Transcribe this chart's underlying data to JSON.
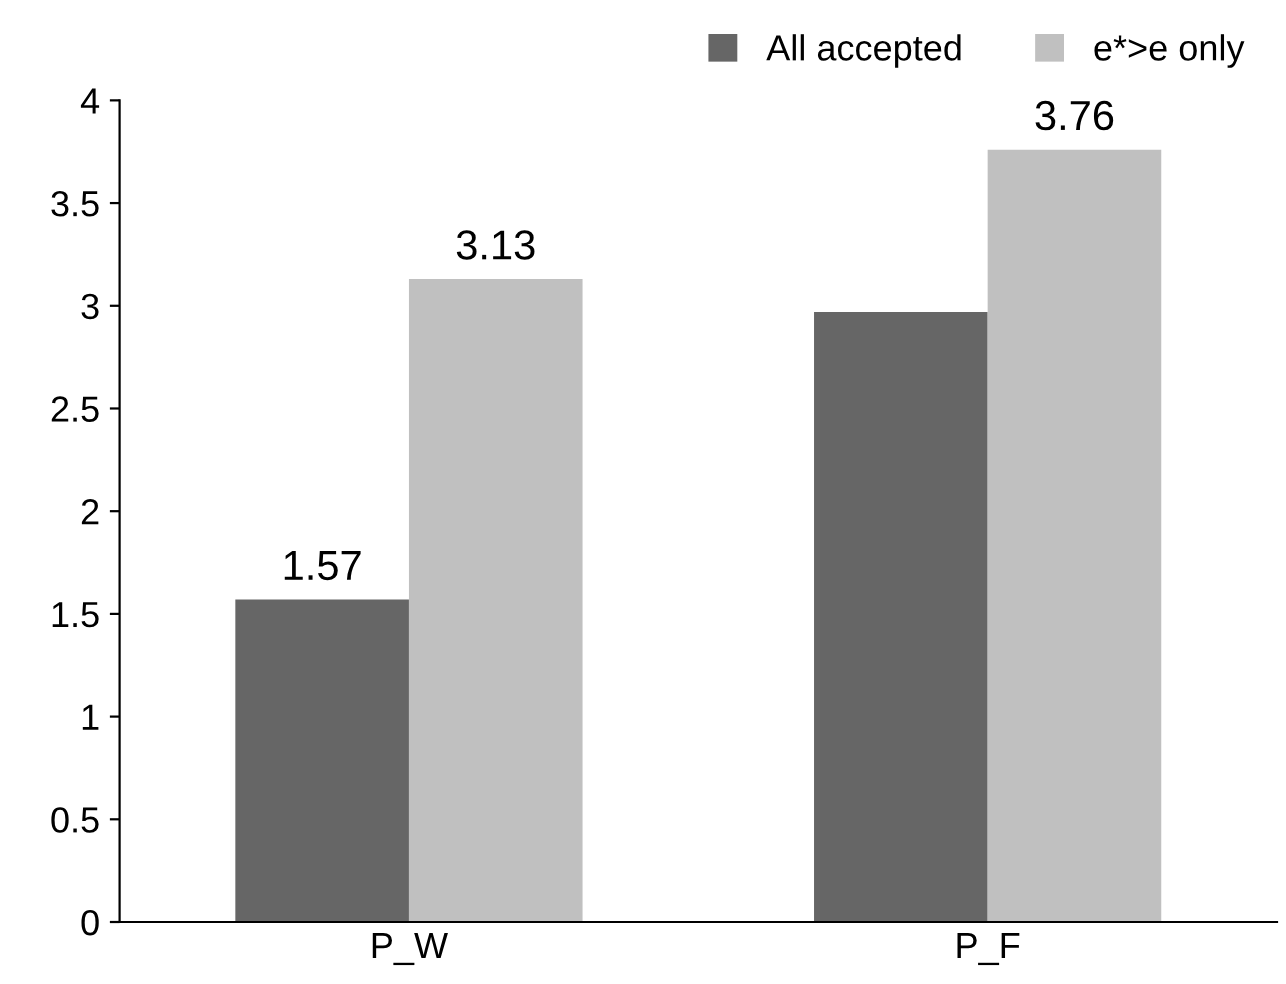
{
  "chart_data": {
    "type": "bar",
    "categories": [
      "P_W",
      "P_F"
    ],
    "series": [
      {
        "name": "All accepted",
        "color": "#666666",
        "values": [
          1.57,
          2.97
        ],
        "value_labels": [
          "1.57",
          null
        ]
      },
      {
        "name": "e*>e only",
        "color": "#c0c0c0",
        "values": [
          3.13,
          3.76
        ],
        "value_labels": [
          "3.13",
          "3.76"
        ]
      }
    ],
    "ylim": [
      0,
      4
    ],
    "yticks": [
      0,
      0.5,
      1,
      1.5,
      2,
      2.5,
      3,
      3.5,
      4
    ],
    "grid": false,
    "legend": "top right"
  }
}
